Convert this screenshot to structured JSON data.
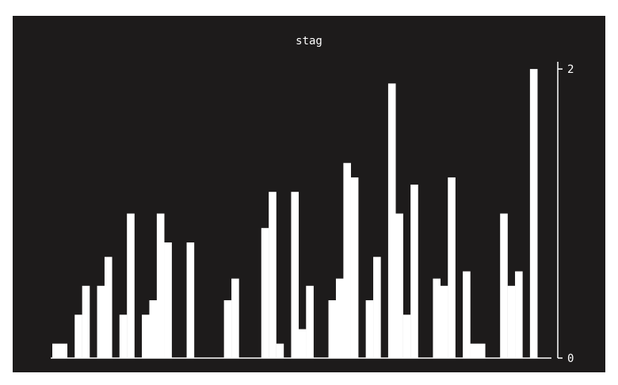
{
  "chart_data": {
    "type": "bar",
    "title": "stag",
    "xlabel": "",
    "ylabel": "",
    "ylim": [
      0,
      2.05
    ],
    "y_axis_position": "right",
    "y_ticks": [
      {
        "value": 0,
        "label": "0"
      },
      {
        "value": 2,
        "label": "2"
      }
    ],
    "background": "#1d1b1b",
    "bar_color": "#ffffff",
    "values": [
      0.1,
      0.1,
      0,
      0.3,
      0.5,
      0,
      0.5,
      0.7,
      0,
      0.3,
      1.0,
      0,
      0.3,
      0.4,
      1.0,
      0.8,
      0,
      0,
      0.8,
      0,
      0,
      0,
      0,
      0.4,
      0.55,
      0,
      0,
      0,
      0.9,
      1.15,
      0.1,
      0,
      1.15,
      0.2,
      0.5,
      0,
      0,
      0.4,
      0.55,
      1.35,
      1.25,
      0,
      0.4,
      0.7,
      0,
      1.9,
      1.0,
      0.3,
      1.2,
      0,
      0,
      0.55,
      0.5,
      1.25,
      0,
      0.6,
      0.1,
      0.1,
      0,
      0,
      1.0,
      0.5,
      0.6,
      0,
      2.0
    ]
  }
}
